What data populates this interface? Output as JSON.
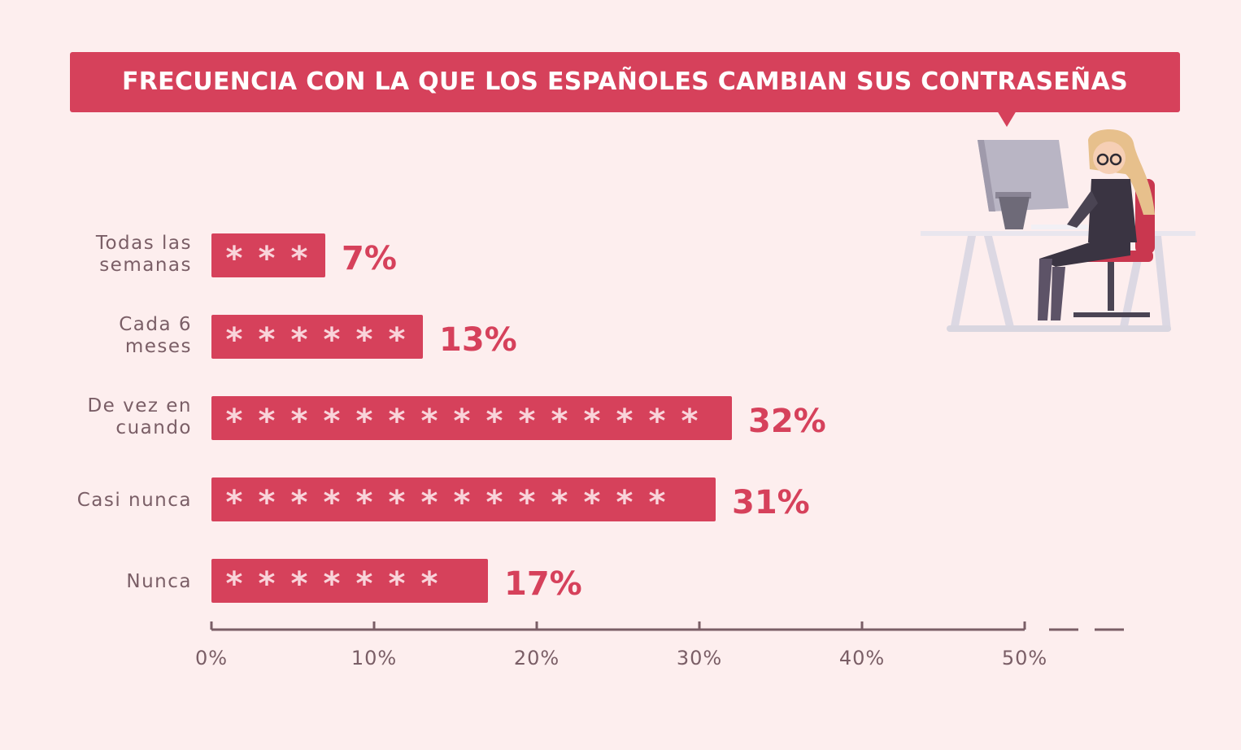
{
  "title": "FRECUENCIA CON LA QUE LOS ESPAÑOLES CAMBIAN SUS CONTRASEÑAS",
  "colors": {
    "bar": "#d6415b",
    "asterisk": "#f9d4da",
    "text_muted": "#7a5e66",
    "background": "#fdeeee"
  },
  "illustration": "woman-at-computer-desk",
  "chart_data": {
    "type": "bar",
    "orientation": "horizontal",
    "categories": [
      [
        "Todas las",
        "semanas"
      ],
      [
        "Cada 6",
        "meses"
      ],
      [
        "De vez en",
        "cuando"
      ],
      [
        "Casi nunca"
      ],
      [
        "Nunca"
      ]
    ],
    "values": [
      7,
      13,
      32,
      31,
      17
    ],
    "value_labels": [
      "7%",
      "13%",
      "32%",
      "31%",
      "17%"
    ],
    "asterisks": [
      3,
      6,
      15,
      14,
      7
    ],
    "xlim": [
      0,
      50
    ],
    "xticks": [
      0,
      10,
      20,
      30,
      40,
      50
    ],
    "xtick_labels": [
      "0%",
      "10%",
      "20%",
      "30%",
      "40%",
      "50%"
    ],
    "title": "FRECUENCIA CON LA QUE LOS ESPAÑOLES CAMBIAN SUS CONTRASEÑAS",
    "xlabel": "",
    "ylabel": "",
    "grid": false
  }
}
